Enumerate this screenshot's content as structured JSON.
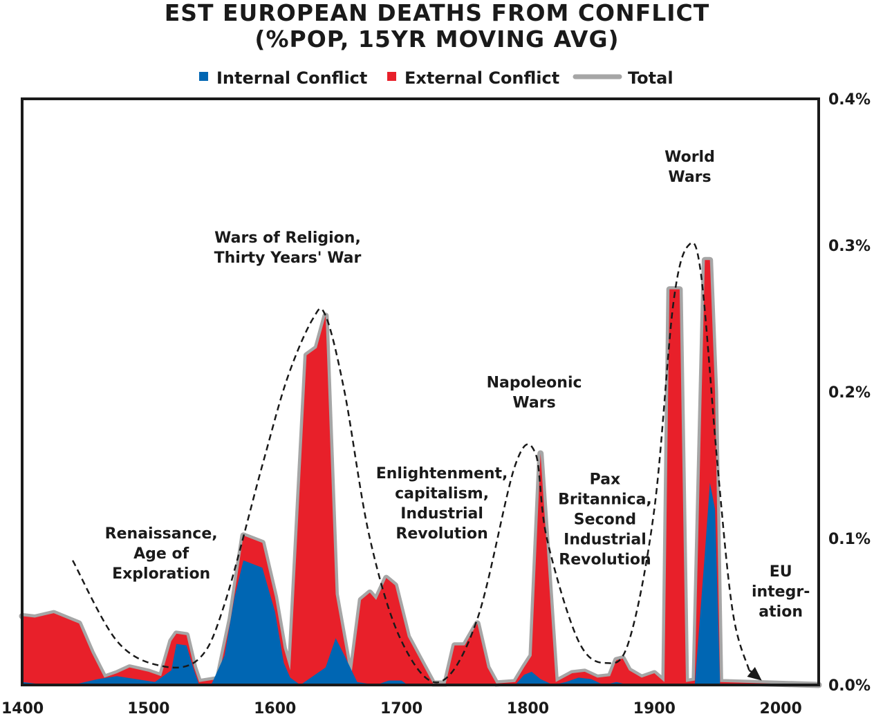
{
  "chart_data": {
    "type": "area",
    "title": [
      "EST EUROPEAN DEATHS FROM CONFLICT",
      "(%POP, 15YR MOVING AVG)"
    ],
    "legend": [
      {
        "name": "Internal Conflict",
        "color": "#0066b3",
        "marker": "square"
      },
      {
        "name": "External Conflict",
        "color": "#e8202a",
        "marker": "square"
      },
      {
        "name": "Total",
        "color": "#a6a6a6",
        "marker": "line"
      }
    ],
    "xlim": [
      1400,
      2030
    ],
    "ylim": [
      0,
      0.4
    ],
    "x_ticks": [
      "1400",
      "1500",
      "1600",
      "1700",
      "1800",
      "1900",
      "2000"
    ],
    "y_ticks": [
      "0.0%",
      "0.1%",
      "0.2%",
      "0.3%",
      "0.4%"
    ],
    "y_axis_side": "right",
    "grid": false,
    "series": [
      {
        "name": "Internal Conflict",
        "color": "#0066b3",
        "points": [
          [
            1400,
            0.002
          ],
          [
            1420,
            0.0
          ],
          [
            1440,
            0.0
          ],
          [
            1460,
            0.004
          ],
          [
            1475,
            0.006
          ],
          [
            1490,
            0.004
          ],
          [
            1505,
            0.002
          ],
          [
            1518,
            0.01
          ],
          [
            1522,
            0.028
          ],
          [
            1530,
            0.027
          ],
          [
            1536,
            0.01
          ],
          [
            1540,
            0.0
          ],
          [
            1550,
            0.001
          ],
          [
            1560,
            0.02
          ],
          [
            1568,
            0.06
          ],
          [
            1575,
            0.085
          ],
          [
            1590,
            0.08
          ],
          [
            1600,
            0.05
          ],
          [
            1607,
            0.015
          ],
          [
            1612,
            0.005
          ],
          [
            1620,
            0.0
          ],
          [
            1640,
            0.012
          ],
          [
            1648,
            0.032
          ],
          [
            1655,
            0.02
          ],
          [
            1665,
            0.002
          ],
          [
            1680,
            0.0
          ],
          [
            1690,
            0.003
          ],
          [
            1700,
            0.003
          ],
          [
            1705,
            0.0
          ],
          [
            1790,
            0.0
          ],
          [
            1797,
            0.007
          ],
          [
            1803,
            0.009
          ],
          [
            1810,
            0.004
          ],
          [
            1820,
            0.0
          ],
          [
            1830,
            0.002
          ],
          [
            1840,
            0.005
          ],
          [
            1850,
            0.004
          ],
          [
            1860,
            0.0
          ],
          [
            1870,
            0.002
          ],
          [
            1880,
            0.0
          ],
          [
            1932,
            0.0
          ],
          [
            1940,
            0.09
          ],
          [
            1944,
            0.138
          ],
          [
            1948,
            0.12
          ],
          [
            1952,
            0.0
          ],
          [
            2030,
            0.0
          ]
        ]
      },
      {
        "name": "External Conflict",
        "color": "#e8202a",
        "points": [
          [
            1400,
            0.045
          ],
          [
            1410,
            0.044
          ],
          [
            1425,
            0.047
          ],
          [
            1445,
            0.04
          ],
          [
            1455,
            0.02
          ],
          [
            1465,
            0.003
          ],
          [
            1475,
            0.005
          ],
          [
            1485,
            0.01
          ],
          [
            1500,
            0.007
          ],
          [
            1510,
            0.005
          ],
          [
            1520,
            0.006
          ],
          [
            1525,
            0.005
          ],
          [
            1530,
            0.005
          ],
          [
            1540,
            0.002
          ],
          [
            1555,
            0.003
          ],
          [
            1565,
            0.005
          ],
          [
            1575,
            0.015
          ],
          [
            1590,
            0.017
          ],
          [
            1600,
            0.008
          ],
          [
            1605,
            0.01
          ],
          [
            1610,
            0.0
          ],
          [
            1625,
            0.225
          ],
          [
            1633,
            0.23
          ],
          [
            1640,
            0.12
          ],
          [
            1648,
            0.03
          ],
          [
            1660,
            0.002
          ],
          [
            1668,
            0.05
          ],
          [
            1675,
            0.06
          ],
          [
            1680,
            0.055
          ],
          [
            1688,
            0.025
          ],
          [
            1695,
            0.065
          ],
          [
            1705,
            0.03
          ],
          [
            1715,
            0.015
          ],
          [
            1725,
            0.0
          ],
          [
            1735,
            0.0
          ],
          [
            1742,
            0.025
          ],
          [
            1750,
            0.025
          ],
          [
            1760,
            0.04
          ],
          [
            1768,
            0.01
          ],
          [
            1775,
            0.0
          ],
          [
            1790,
            0.0
          ],
          [
            1795,
            0.005
          ],
          [
            1800,
            0.01
          ],
          [
            1806,
            0.12
          ],
          [
            1810,
            0.148
          ],
          [
            1815,
            0.09
          ],
          [
            1822,
            0.0
          ],
          [
            1835,
            0.004
          ],
          [
            1845,
            0.004
          ],
          [
            1855,
            0.002
          ],
          [
            1865,
            0.004
          ],
          [
            1870,
            0.015
          ],
          [
            1875,
            0.016
          ],
          [
            1880,
            0.008
          ],
          [
            1890,
            0.004
          ],
          [
            1900,
            0.006
          ],
          [
            1908,
            0.0
          ],
          [
            1912,
            0.27
          ],
          [
            1920,
            0.27
          ],
          [
            1925,
            0.0
          ],
          [
            1932,
            0.0
          ],
          [
            1940,
            0.2
          ],
          [
            1944,
            0.15
          ],
          [
            1948,
            0.08
          ],
          [
            1952,
            0.0
          ],
          [
            2030,
            0.0
          ]
        ]
      },
      {
        "name": "Total",
        "color": "#a6a6a6",
        "points": [
          [
            1400,
            0.047
          ],
          [
            1410,
            0.046
          ],
          [
            1425,
            0.049
          ],
          [
            1445,
            0.042
          ],
          [
            1455,
            0.022
          ],
          [
            1465,
            0.005
          ],
          [
            1475,
            0.008
          ],
          [
            1485,
            0.012
          ],
          [
            1500,
            0.009
          ],
          [
            1510,
            0.006
          ],
          [
            1518,
            0.03
          ],
          [
            1522,
            0.035
          ],
          [
            1530,
            0.034
          ],
          [
            1536,
            0.012
          ],
          [
            1540,
            0.002
          ],
          [
            1555,
            0.004
          ],
          [
            1565,
            0.045
          ],
          [
            1575,
            0.102
          ],
          [
            1590,
            0.097
          ],
          [
            1600,
            0.06
          ],
          [
            1607,
            0.025
          ],
          [
            1612,
            0.01
          ],
          [
            1625,
            0.225
          ],
          [
            1633,
            0.23
          ],
          [
            1640,
            0.252
          ],
          [
            1648,
            0.062
          ],
          [
            1660,
            0.004
          ],
          [
            1668,
            0.058
          ],
          [
            1675,
            0.063
          ],
          [
            1680,
            0.058
          ],
          [
            1688,
            0.073
          ],
          [
            1695,
            0.068
          ],
          [
            1705,
            0.033
          ],
          [
            1715,
            0.017
          ],
          [
            1725,
            0.001
          ],
          [
            1735,
            0.001
          ],
          [
            1742,
            0.027
          ],
          [
            1750,
            0.027
          ],
          [
            1760,
            0.042
          ],
          [
            1768,
            0.012
          ],
          [
            1775,
            0.001
          ],
          [
            1790,
            0.002
          ],
          [
            1797,
            0.012
          ],
          [
            1803,
            0.02
          ],
          [
            1810,
            0.158
          ],
          [
            1815,
            0.093
          ],
          [
            1822,
            0.002
          ],
          [
            1835,
            0.008
          ],
          [
            1845,
            0.009
          ],
          [
            1855,
            0.005
          ],
          [
            1865,
            0.006
          ],
          [
            1870,
            0.017
          ],
          [
            1875,
            0.018
          ],
          [
            1880,
            0.01
          ],
          [
            1890,
            0.005
          ],
          [
            1900,
            0.008
          ],
          [
            1908,
            0.002
          ],
          [
            1912,
            0.27
          ],
          [
            1920,
            0.27
          ],
          [
            1925,
            0.002
          ],
          [
            1932,
            0.003
          ],
          [
            1940,
            0.29
          ],
          [
            1944,
            0.29
          ],
          [
            1948,
            0.2
          ],
          [
            1952,
            0.002
          ],
          [
            2030,
            0.0
          ]
        ]
      }
    ],
    "cycle_curve": {
      "style": "dashed",
      "points": [
        [
          1440,
          0.085
        ],
        [
          1475,
          0.03
        ],
        [
          1510,
          0.013
        ],
        [
          1540,
          0.018
        ],
        [
          1560,
          0.055
        ],
        [
          1590,
          0.15
        ],
        [
          1610,
          0.21
        ],
        [
          1630,
          0.25
        ],
        [
          1640,
          0.252
        ],
        [
          1655,
          0.2
        ],
        [
          1675,
          0.1
        ],
        [
          1700,
          0.03
        ],
        [
          1730,
          0.002
        ],
        [
          1760,
          0.045
        ],
        [
          1790,
          0.15
        ],
        [
          1806,
          0.158
        ],
        [
          1815,
          0.1
        ],
        [
          1840,
          0.03
        ],
        [
          1862,
          0.015
        ],
        [
          1880,
          0.03
        ],
        [
          1900,
          0.12
        ],
        [
          1915,
          0.26
        ],
        [
          1927,
          0.3
        ],
        [
          1937,
          0.28
        ],
        [
          1950,
          0.15
        ],
        [
          1962,
          0.05
        ],
        [
          1975,
          0.01
        ]
      ],
      "arrow_end": [
        1985,
        0.003
      ]
    },
    "annotations": [
      {
        "lines": [
          "Renaissance,",
          "Age of",
          "Exploration"
        ],
        "x": 1510,
        "y": 0.1
      },
      {
        "lines": [
          "Wars of Religion,",
          "Thirty Years' War"
        ],
        "x": 1610,
        "y": 0.302
      },
      {
        "lines": [
          "Enlightenment,",
          "capitalism,",
          "Industrial",
          "Revolution"
        ],
        "x": 1732,
        "y": 0.141
      },
      {
        "lines": [
          "Napoleonic",
          "Wars"
        ],
        "x": 1805,
        "y": 0.203
      },
      {
        "lines": [
          "Pax",
          "Britannica,",
          "Second",
          "Industrial",
          "Revolution"
        ],
        "x": 1861,
        "y": 0.137
      },
      {
        "lines": [
          "World",
          "Wars"
        ],
        "x": 1928,
        "y": 0.357
      },
      {
        "lines": [
          "EU",
          "integr-",
          "ation"
        ],
        "x": 2000,
        "y": 0.074
      }
    ]
  }
}
